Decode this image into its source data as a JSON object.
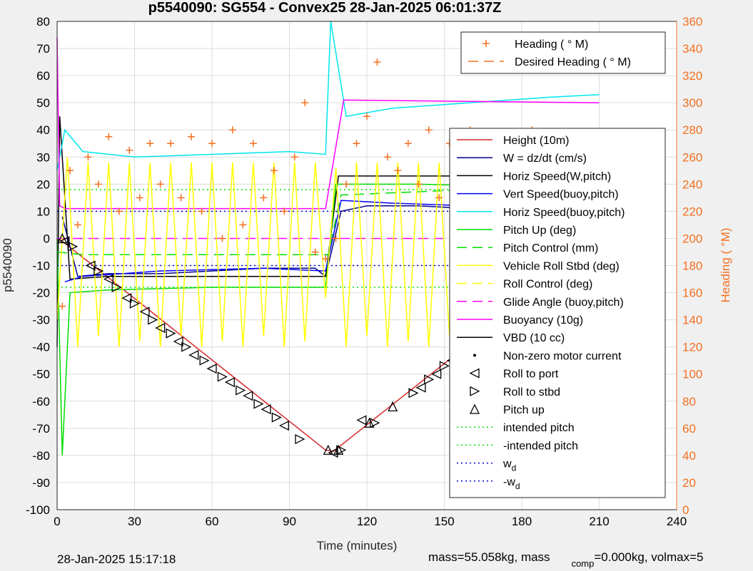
{
  "chart_data": {
    "type": "line",
    "title": "p5540090: SG554 - Convex25 28-Jan-2025 06:01:37Z",
    "xlabel": "Time (minutes)",
    "ylabel_left": "p5540090",
    "ylabel_right": "Heading (  °M)",
    "xlim": [
      0,
      240
    ],
    "ylim_left": [
      -100,
      80
    ],
    "ylim_right": [
      0,
      360
    ],
    "x_ticks": [
      0,
      30,
      60,
      90,
      120,
      150,
      180,
      210,
      240
    ],
    "y_ticks_left": [
      -100,
      -90,
      -80,
      -70,
      -60,
      -50,
      -40,
      -30,
      -20,
      -10,
      0,
      10,
      20,
      30,
      40,
      50,
      60,
      70,
      80
    ],
    "y_ticks_right": [
      0,
      20,
      40,
      60,
      80,
      100,
      120,
      140,
      160,
      180,
      200,
      220,
      240,
      260,
      280,
      300,
      320,
      340,
      360
    ],
    "grid": true,
    "legend_top": {
      "position": "top-right",
      "entries": [
        {
          "label": "Heading (  ° M)",
          "color": "#f37021",
          "style": "plus"
        },
        {
          "label": "Desired Heading (    ° M)",
          "color": "#f37021",
          "style": "dash"
        }
      ]
    },
    "legend_main": {
      "position": "right",
      "entries": [
        {
          "label": "Height (10m)",
          "color": "#d62728",
          "style": "solid"
        },
        {
          "label": "W = dz/dt (cm/s)",
          "color": "#00008b",
          "style": "solid"
        },
        {
          "label": "Horiz Speed(W,pitch)",
          "color": "#000000",
          "style": "solid"
        },
        {
          "label": "Vert Speed(buoy,pitch)",
          "color": "#0000ff",
          "style": "solid"
        },
        {
          "label": "Horiz Speed(buoy,pitch)",
          "color": "#00e5ee",
          "style": "solid"
        },
        {
          "label": "Pitch Up (deg)",
          "color": "#00dd00",
          "style": "solid"
        },
        {
          "label": "Pitch Control (mm)",
          "color": "#00dd00",
          "style": "dash"
        },
        {
          "label": "Vehicle Roll Stbd (deg)",
          "color": "#ffff00",
          "style": "solid"
        },
        {
          "label": "Roll Control (deg)",
          "color": "#ffff00",
          "style": "dash"
        },
        {
          "label": "Glide Angle (buoy,pitch)",
          "color": "#ff00ff",
          "style": "dash"
        },
        {
          "label": "Buoyancy (10g)",
          "color": "#ff00ff",
          "style": "solid"
        },
        {
          "label": "VBD (10 cc)",
          "color": "#000000",
          "style": "solid"
        },
        {
          "label": "Non-zero motor current",
          "color": "#000000",
          "style": "dot"
        },
        {
          "label": "Roll to port",
          "color": "#000000",
          "style": "tri-left"
        },
        {
          "label": "Roll to stbd",
          "color": "#000000",
          "style": "tri-right"
        },
        {
          "label": "Pitch up",
          "color": "#000000",
          "style": "tri-up"
        },
        {
          "label": "intended pitch",
          "color": "#00dd00",
          "style": "dotted"
        },
        {
          "label": "-intended pitch",
          "color": "#00dd00",
          "style": "dotted"
        },
        {
          "label": "w",
          "sub": "d",
          "color": "#0000cc",
          "style": "dotted"
        },
        {
          "label": "-w",
          "sub": "d",
          "color": "#0000cc",
          "style": "dotted"
        }
      ]
    },
    "series": [
      {
        "name": "Height (10m)",
        "color": "#d62728",
        "x": [
          0,
          2,
          104,
          107,
          210
        ],
        "y": [
          0,
          -1,
          -78,
          -78.5,
          -1
        ]
      },
      {
        "name": "Roll to port",
        "color": "#000000",
        "marker": "tri-left",
        "x": [
          3,
          13,
          20,
          27,
          34,
          40,
          47,
          53,
          60,
          67,
          74,
          81,
          88,
          107,
          118,
          141,
          147,
          153,
          160,
          166,
          172,
          178,
          186,
          193,
          200,
          206
        ],
        "y": [
          -1,
          -10,
          -15,
          -22,
          -27,
          -33,
          -38,
          -43,
          -48,
          -53,
          -58,
          -63,
          -69,
          -79,
          -67,
          -55,
          -50,
          -45,
          -39,
          -34,
          -28,
          -23,
          -17,
          -11,
          -6,
          -2
        ]
      },
      {
        "name": "Roll to stbd",
        "color": "#000000",
        "marker": "tri-right",
        "x": [
          6,
          16,
          23,
          30,
          37,
          44,
          50,
          57,
          64,
          71,
          78,
          85,
          94,
          110,
          123,
          138,
          144,
          150,
          157,
          163,
          169,
          175,
          182,
          189,
          196,
          203,
          209
        ],
        "y": [
          -3,
          -12,
          -18,
          -24,
          -30,
          -35,
          -40,
          -45,
          -51,
          -56,
          -61,
          -66,
          -74,
          -78,
          -68,
          -57,
          -52,
          -47,
          -42,
          -36,
          -31,
          -25,
          -20,
          -14,
          -9,
          -4,
          0
        ]
      },
      {
        "name": "Pitch up",
        "color": "#000000",
        "marker": "tri-up",
        "x": [
          2,
          105,
          109,
          121,
          130
        ],
        "y": [
          0,
          -78,
          -78,
          -68,
          -62
        ]
      },
      {
        "name": "W = dz/dt (cm/s)",
        "color": "#00008b",
        "x": [
          2,
          8,
          20,
          40,
          60,
          80,
          100,
          104,
          110,
          120,
          140,
          160,
          180,
          210
        ],
        "y": [
          8,
          -14,
          -13,
          -13,
          -12,
          -11,
          -11,
          -14,
          10,
          12,
          12,
          11,
          12,
          14
        ]
      },
      {
        "name": "Horiz Speed(W,pitch)",
        "color": "#000000",
        "x": [
          0,
          1,
          5,
          20,
          60,
          100,
          104,
          109,
          140,
          180,
          210
        ],
        "y": [
          -40,
          45,
          -15,
          -14,
          -14,
          -14,
          -14,
          23,
          23,
          23,
          23
        ]
      },
      {
        "name": "Vert Speed(buoy,pitch)",
        "color": "#0000ff",
        "x": [
          3,
          10,
          40,
          80,
          104,
          110,
          130,
          160,
          190,
          210
        ],
        "y": [
          -16,
          -14,
          -12,
          -11,
          -12,
          14,
          13,
          12,
          11,
          12
        ]
      },
      {
        "name": "Horiz Speed(buoy,pitch)",
        "color": "#00e5ee",
        "x": [
          0,
          3,
          10,
          30,
          60,
          90,
          104,
          106,
          112,
          130,
          160,
          190,
          210
        ],
        "y": [
          25,
          40,
          32,
          30,
          31,
          32,
          31,
          80,
          45,
          48,
          50,
          52,
          53
        ]
      },
      {
        "name": "Pitch Up (deg)",
        "color": "#00dd00",
        "x": [
          0,
          2,
          5,
          20,
          60,
          100,
          104,
          108,
          140,
          180,
          210
        ],
        "y": [
          0,
          -80,
          -20,
          -19,
          -18,
          -18,
          -18,
          20,
          20,
          19,
          20
        ]
      },
      {
        "name": "Pitch Control (mm)",
        "color": "#00dd00",
        "style": "dash",
        "x": [
          0,
          10,
          60,
          100,
          105,
          110,
          160,
          210
        ],
        "y": [
          -5,
          -6,
          -6,
          -6,
          -6,
          16,
          18,
          18
        ]
      },
      {
        "name": "Glide Angle (buoy,pitch)",
        "color": "#ff00ff",
        "style": "dash",
        "x": [
          0,
          104,
          106,
          210
        ],
        "y": [
          0,
          0,
          0,
          0
        ]
      },
      {
        "name": "Buoyancy (10g)",
        "color": "#ff00ff",
        "x": [
          0,
          1,
          3,
          104,
          111,
          210
        ],
        "y": [
          74,
          12,
          11,
          11,
          51,
          50
        ]
      },
      {
        "name": "intended pitch",
        "color": "#00dd00",
        "style": "dotted",
        "x": [
          0,
          210
        ],
        "y": [
          18,
          18
        ]
      },
      {
        "name": "-intended pitch",
        "color": "#00dd00",
        "style": "dotted",
        "x": [
          0,
          210
        ],
        "y": [
          -18,
          -18
        ]
      },
      {
        "name": "w_d",
        "color": "#0000cc",
        "style": "dotted",
        "x": [
          0,
          210
        ],
        "y": [
          10,
          10
        ]
      },
      {
        "name": "-w_d",
        "color": "#0000cc",
        "style": "dotted",
        "x": [
          0,
          210
        ],
        "y": [
          -10,
          -10
        ]
      },
      {
        "name": "Heading (  ° M)",
        "color": "#f37021",
        "axis": "right",
        "marker": "plus",
        "x": [
          2,
          5,
          8,
          12,
          16,
          20,
          24,
          28,
          32,
          36,
          40,
          44,
          48,
          52,
          56,
          60,
          64,
          68,
          72,
          76,
          80,
          84,
          88,
          92,
          96,
          100,
          104,
          108,
          112,
          116,
          120,
          124,
          128,
          132,
          136,
          140,
          144,
          148,
          152,
          156,
          160,
          164,
          168,
          172,
          176,
          180,
          184,
          188,
          192,
          196,
          200,
          204,
          208
        ],
        "y": [
          150,
          250,
          210,
          260,
          240,
          275,
          220,
          265,
          230,
          270,
          240,
          270,
          230,
          275,
          220,
          270,
          200,
          280,
          210,
          270,
          230,
          250,
          220,
          260,
          300,
          190,
          185,
          200,
          240,
          270,
          290,
          330,
          260,
          250,
          270,
          240,
          280,
          230,
          270,
          200,
          280,
          220,
          260,
          180,
          260,
          270,
          280,
          230,
          270,
          200,
          260,
          250,
          220
        ]
      },
      {
        "name": "Vehicle Roll Stbd (deg)",
        "color": "#ffff00",
        "x": [
          0,
          4,
          8,
          12,
          16,
          20,
          24,
          28,
          32,
          36,
          40,
          44,
          48,
          52,
          56,
          60,
          64,
          68,
          72,
          76,
          80,
          84,
          88,
          92,
          96,
          100,
          104,
          108,
          112,
          116,
          120,
          124,
          128,
          132,
          136,
          140,
          144,
          148,
          152,
          156,
          160,
          164,
          168,
          172,
          176,
          180,
          184,
          188,
          192,
          196,
          200,
          204,
          208
        ],
        "y": [
          -30,
          30,
          -40,
          28,
          -36,
          28,
          -40,
          28,
          -38,
          28,
          -40,
          28,
          -36,
          28,
          -40,
          28,
          -38,
          28,
          -40,
          28,
          -36,
          28,
          -40,
          28,
          -38,
          28,
          -22,
          26,
          -40,
          28,
          -36,
          28,
          -40,
          28,
          -38,
          28,
          -40,
          28,
          -36,
          28,
          -40,
          28,
          -38,
          28,
          -40,
          28,
          -36,
          28,
          -40,
          28,
          -38,
          28,
          -40
        ]
      }
    ]
  },
  "footer": {
    "timestamp": "28-Jan-2025 15:17:18",
    "mass_prefix": "mass=55.058kg, mass",
    "mass_sub": "comp",
    "mass_suffix": "=0.000kg, volmax=5"
  }
}
